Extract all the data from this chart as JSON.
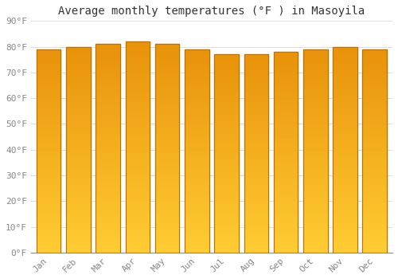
{
  "title": "Average monthly temperatures (°F ) in Masoyila",
  "months": [
    "Jan",
    "Feb",
    "Mar",
    "Apr",
    "May",
    "Jun",
    "Jul",
    "Aug",
    "Sep",
    "Oct",
    "Nov",
    "Dec"
  ],
  "values": [
    79,
    80,
    81,
    82,
    81,
    79,
    77,
    77,
    78,
    79,
    80,
    79
  ],
  "bar_color_top": "#E8920A",
  "bar_color_bottom": "#FFCC33",
  "bar_edge_color": "#B8720A",
  "background_color": "#FFFFFF",
  "grid_color": "#DDDDDD",
  "ylim": [
    0,
    90
  ],
  "yticks": [
    0,
    10,
    20,
    30,
    40,
    50,
    60,
    70,
    80,
    90
  ],
  "ytick_labels": [
    "0°F",
    "10°F",
    "20°F",
    "30°F",
    "40°F",
    "50°F",
    "60°F",
    "70°F",
    "80°F",
    "90°F"
  ],
  "title_fontsize": 10,
  "tick_fontsize": 8,
  "font_family": "monospace"
}
